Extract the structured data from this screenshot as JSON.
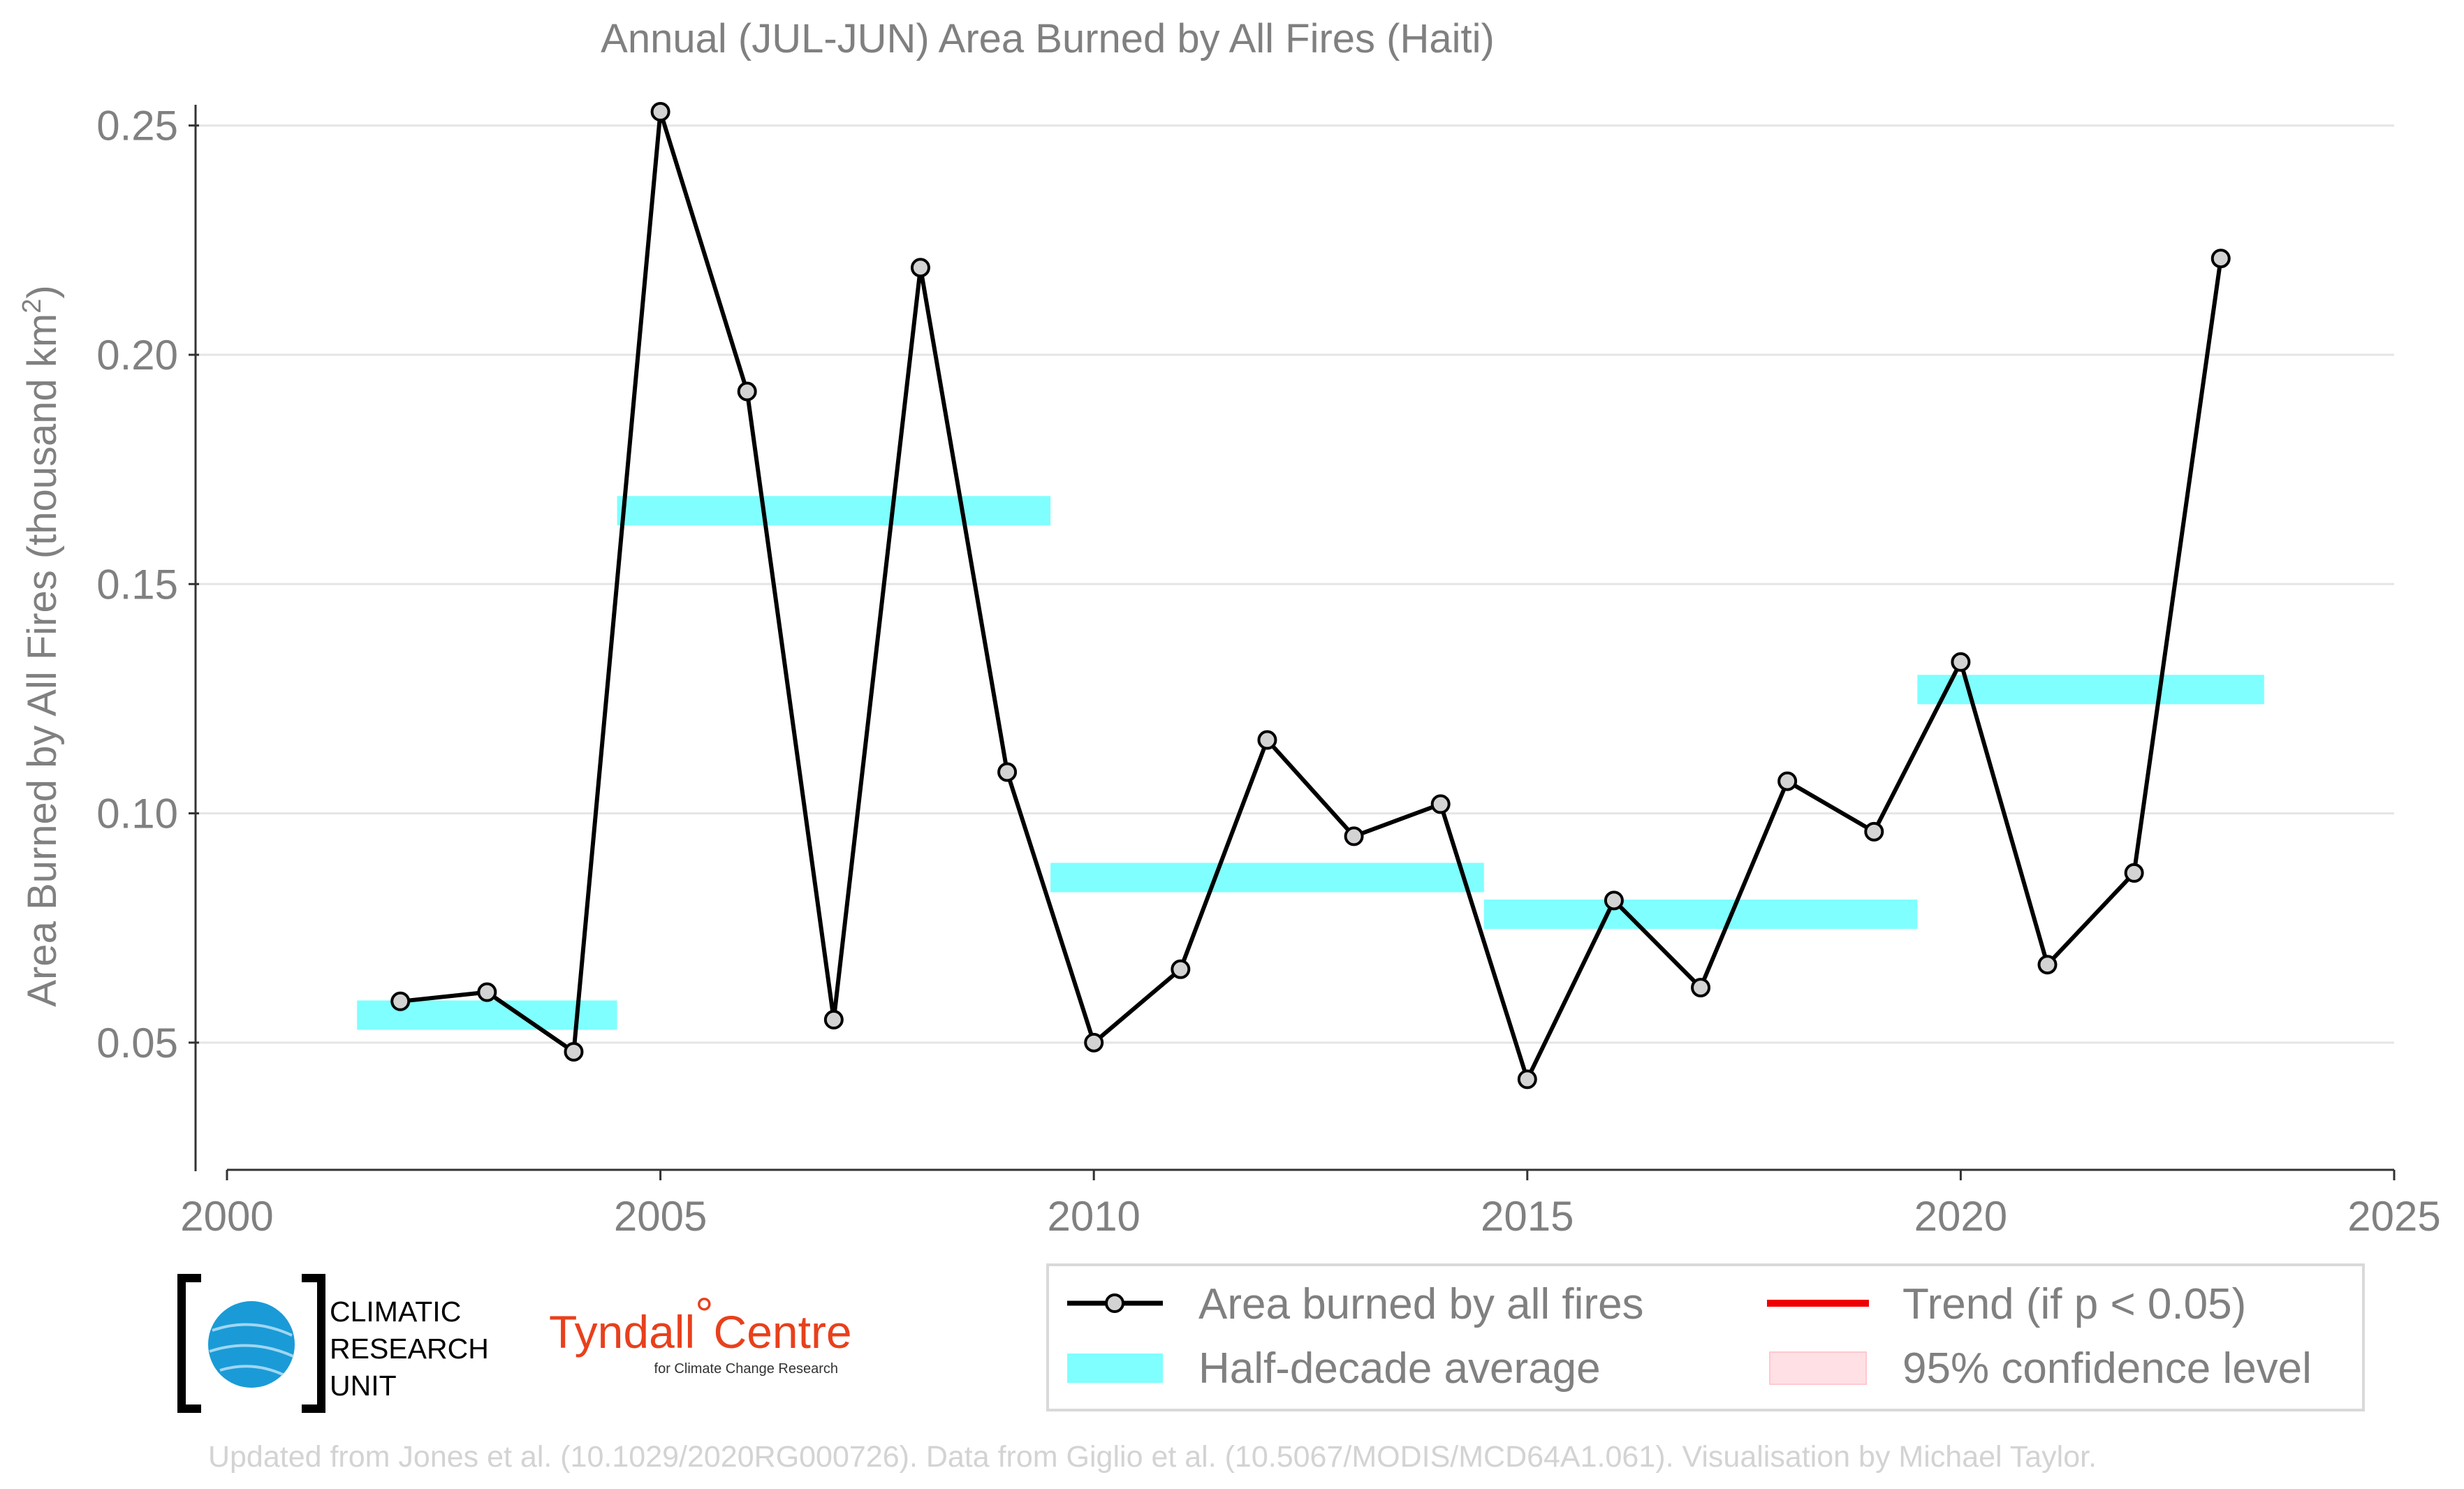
{
  "chart_data": {
    "type": "line",
    "title": "Annual (JUL-JUN) Area Burned by All Fires (Haiti)",
    "xlabel": "",
    "ylabel": "Area Burned by All Fires (thousand km",
    "ylabel_sup": "2",
    "ylabel_tail": ")",
    "xlim": [
      2000,
      2025
    ],
    "ylim": [
      0.025,
      0.253
    ],
    "x_ticks": [
      2000,
      2005,
      2010,
      2015,
      2020,
      2025
    ],
    "x_tick_labels": [
      "2000",
      "2005",
      "2010",
      "2015",
      "2020",
      "2025"
    ],
    "y_ticks": [
      0.05,
      0.1,
      0.15,
      0.2,
      0.25
    ],
    "y_tick_labels": [
      "0.05",
      "0.10",
      "0.15",
      "0.20",
      "0.25"
    ],
    "grid": "horizontal",
    "legend_position": "bottom-right",
    "series": [
      {
        "name": "Area burned by all fires",
        "color": "#000000",
        "marker_fill": "#d3d3d3",
        "x": [
          2002,
          2003,
          2004,
          2005,
          2006,
          2007,
          2008,
          2009,
          2010,
          2011,
          2012,
          2013,
          2014,
          2015,
          2016,
          2017,
          2018,
          2019,
          2020,
          2021,
          2022,
          2023
        ],
        "y": [
          0.059,
          0.061,
          0.048,
          0.253,
          0.192,
          0.055,
          0.219,
          0.109,
          0.05,
          0.066,
          0.116,
          0.095,
          0.102,
          0.042,
          0.081,
          0.062,
          0.107,
          0.096,
          0.133,
          0.067,
          0.087,
          0.221
        ]
      }
    ],
    "half_decade_averages": {
      "name": "Half-decade average",
      "color": "#7fffff",
      "segments": [
        {
          "x_start": 2001.5,
          "x_end": 2004.5,
          "value": 0.056
        },
        {
          "x_start": 2004.5,
          "x_end": 2009.5,
          "value": 0.166
        },
        {
          "x_start": 2009.5,
          "x_end": 2014.5,
          "value": 0.086
        },
        {
          "x_start": 2014.5,
          "x_end": 2019.5,
          "value": 0.078
        },
        {
          "x_start": 2019.5,
          "x_end": 2023.5,
          "value": 0.127
        }
      ]
    },
    "legend": [
      {
        "label": "Area burned by all fires",
        "kind": "line-marker",
        "color": "#000000"
      },
      {
        "label": "Trend (if p < 0.05)",
        "kind": "line",
        "color": "#ee0000"
      },
      {
        "label": "Half-decade average",
        "kind": "band",
        "color": "#7fffff"
      },
      {
        "label": "95% confidence level",
        "kind": "patch",
        "color": "#ffe0e4"
      }
    ]
  },
  "logos": {
    "cru_lines": [
      "CLIMATIC",
      "RESEARCH",
      "UNIT"
    ],
    "cru_color": "#1a9bd7",
    "tyndall_name": "Tyndall",
    "tyndall_degree": "°",
    "tyndall_centre": "Centre",
    "tyndall_sub": "for Climate Change Research"
  },
  "footer": "Updated from Jones et al. (10.1029/2020RG000726). Data from Giglio et al. (10.5067/MODIS/MCD64A1.061). Visualisation by Michael Taylor."
}
